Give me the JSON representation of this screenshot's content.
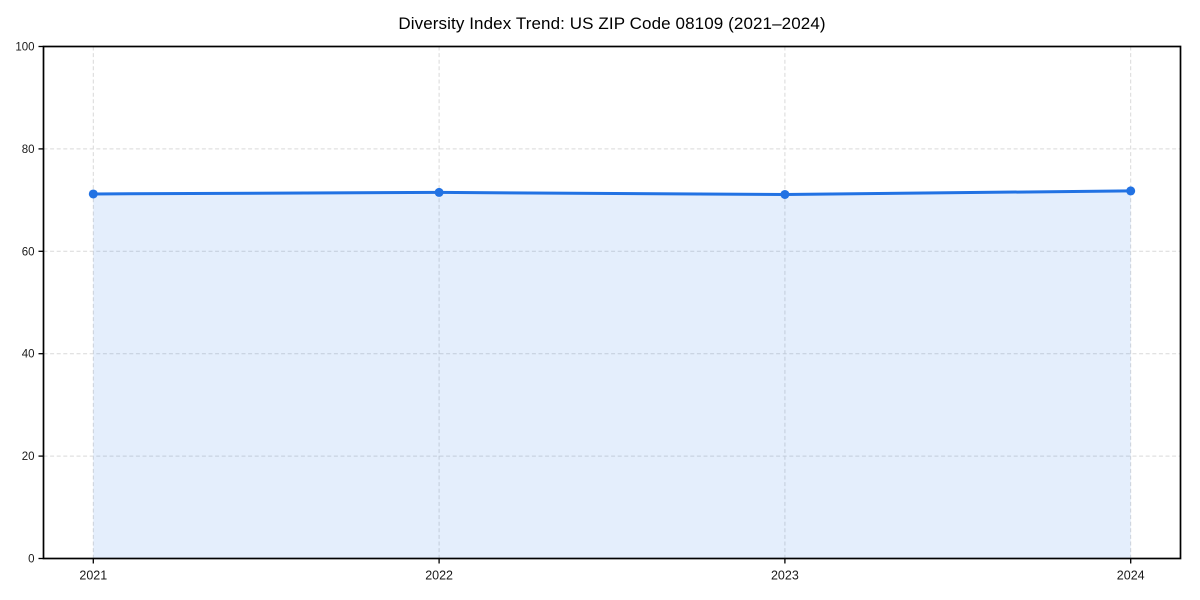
{
  "chart_data": {
    "type": "area",
    "title": "Diversity Index Trend: US ZIP Code 08109 (2021–2024)",
    "x": [
      2021,
      2022,
      2023,
      2024
    ],
    "xtick_labels": [
      "2021",
      "2022",
      "2023",
      "2024"
    ],
    "series": [
      {
        "name": "Diversity Index",
        "values": [
          71.2,
          71.5,
          71.1,
          71.8
        ]
      }
    ],
    "xlabel": "",
    "ylabel": "",
    "ylim": [
      0,
      100
    ],
    "yticks": [
      0,
      20,
      40,
      60,
      80,
      100
    ],
    "grid": true,
    "grid_style": "dashed",
    "legend": "none",
    "marker": "circle",
    "colors": {
      "line": "#2272e3",
      "marker": "#2272e3",
      "fill": "#2272e3",
      "fill_opacity": 0.12,
      "grid": "#d9d9d9",
      "spine": "#000000",
      "tick": "#000000",
      "tick_label": "#1a1a1a",
      "title": "#000000",
      "background": "#ffffff"
    }
  }
}
